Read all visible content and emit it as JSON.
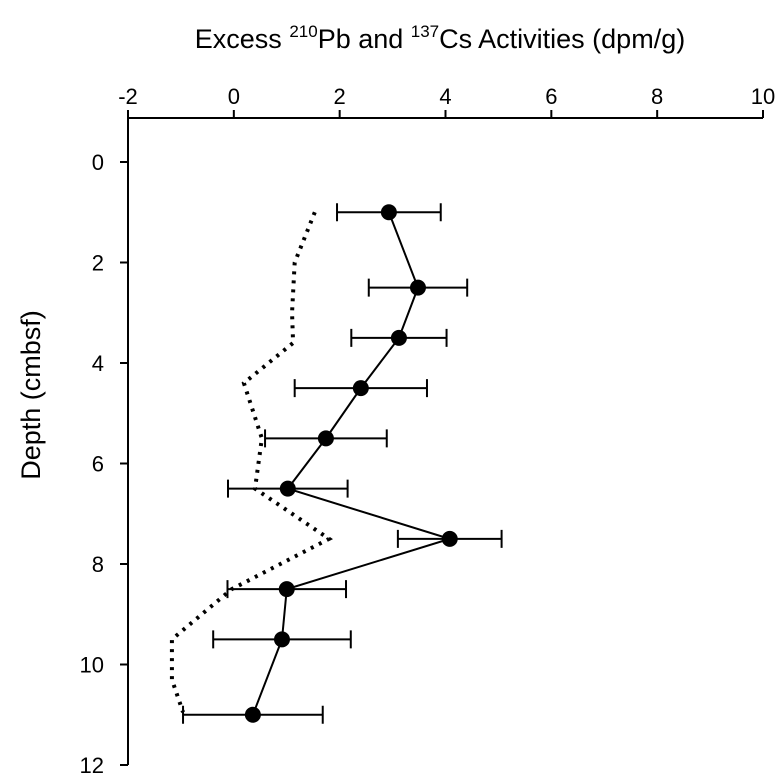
{
  "chart_data": {
    "type": "profile",
    "xlabel": [
      "Excess ",
      "210",
      "Pb and ",
      "137",
      "Cs Activities (dpm/g)"
    ],
    "ylabel": "Depth (cmbsf)",
    "xlim": [
      -2,
      10
    ],
    "xticks": [
      -2,
      0,
      2,
      4,
      6,
      8,
      10
    ],
    "ylim": [
      0,
      12
    ],
    "yticks": [
      0,
      2,
      4,
      6,
      8,
      10,
      12
    ],
    "y_inverted": true,
    "x_axis_position": "top",
    "series": [
      {
        "color": "#000000",
        "line_style": "solid",
        "marker": "circle",
        "depth": [
          1,
          2.5,
          3.5,
          4.5,
          5.5,
          6.5,
          7.5,
          8.5,
          9.5,
          11
        ],
        "values": [
          2.93,
          3.48,
          3.12,
          2.4,
          1.74,
          1.02,
          4.08,
          1.0,
          0.91,
          0.36
        ],
        "errors": [
          0.98,
          0.93,
          0.9,
          1.25,
          1.15,
          1.13,
          0.98,
          1.12,
          1.3,
          1.32
        ]
      },
      {
        "color": "#000000",
        "line_style": "dotted",
        "depth": [
          1,
          2,
          3,
          3.6,
          4.4,
          5.5,
          6.5,
          7.5,
          8.5,
          9.5,
          10.3,
          10.95
        ],
        "values": [
          1.53,
          1.15,
          1.1,
          1.12,
          0.19,
          0.53,
          0.4,
          1.8,
          -0.04,
          -1.17,
          -1.17,
          -0.96
        ]
      }
    ]
  }
}
